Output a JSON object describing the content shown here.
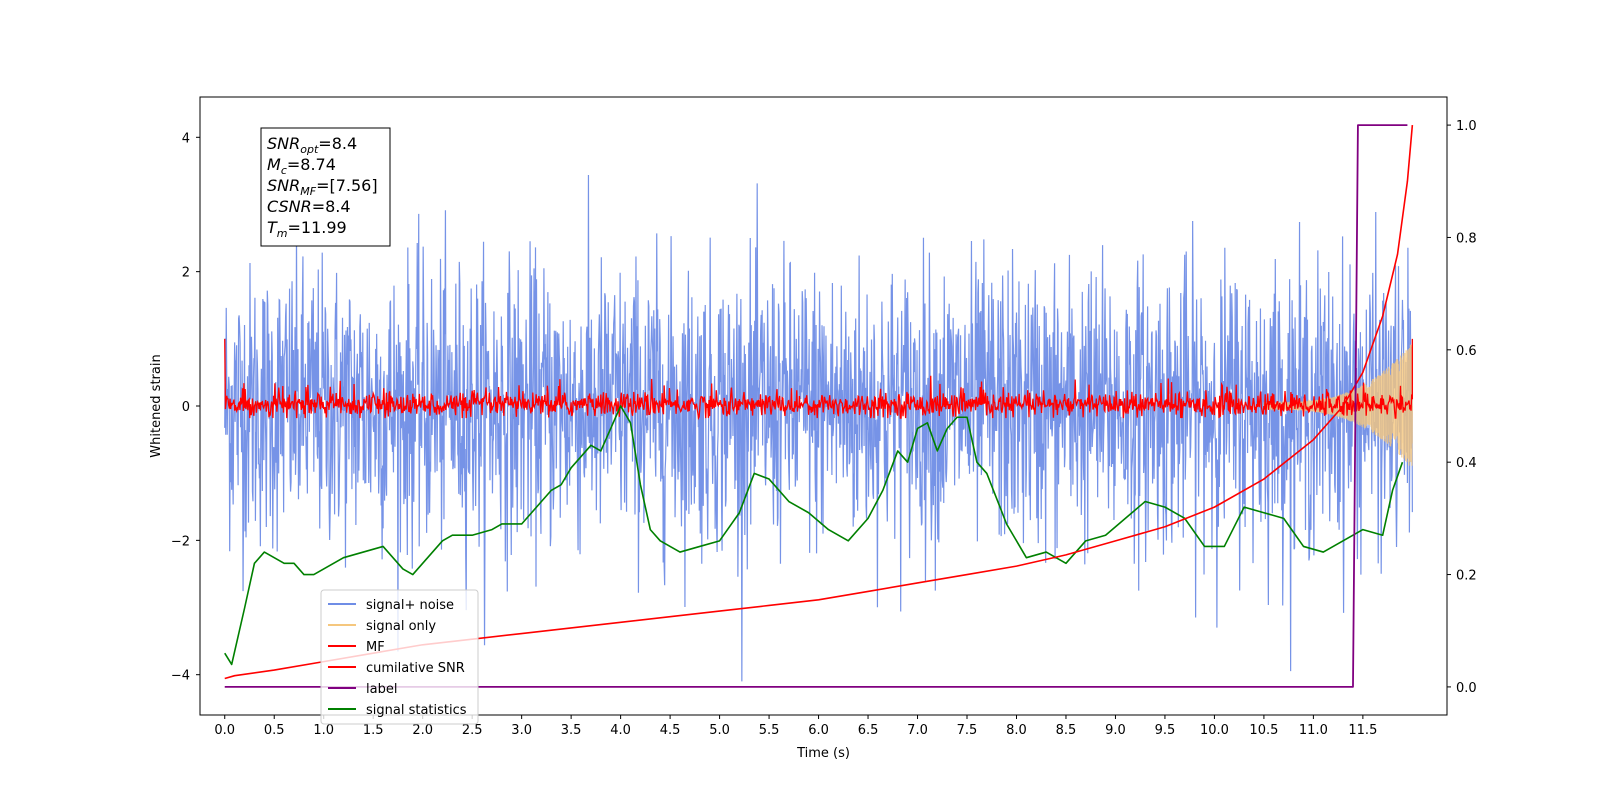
{
  "chart_data": {
    "type": "line",
    "title": "",
    "xlabel": "Time (s)",
    "ylabel_left": "Whitened strain",
    "ylabel_right": "",
    "xlim": [
      -0.25,
      12.35
    ],
    "ylim_left": [
      -4.6,
      4.6
    ],
    "ylim_right": [
      -0.05,
      1.05
    ],
    "xticks": [
      "0.0",
      "0.5",
      "1.0",
      "1.5",
      "2.0",
      "2.5",
      "3.0",
      "3.5",
      "4.0",
      "4.5",
      "5.0",
      "5.5",
      "6.0",
      "6.5",
      "7.0",
      "7.5",
      "8.0",
      "8.5",
      "9.0",
      "9.5",
      "10.0",
      "10.5",
      "11.0",
      "11.5"
    ],
    "xtick_values": [
      0,
      0.5,
      1,
      1.5,
      2,
      2.5,
      3,
      3.5,
      4,
      4.5,
      5,
      5.5,
      6,
      6.5,
      7,
      7.5,
      8,
      8.5,
      9,
      9.5,
      10,
      10.5,
      11,
      11.5
    ],
    "yticks_left": [
      "4",
      "2",
      "0",
      "−2",
      "−4"
    ],
    "ytick_values_left": [
      4,
      2,
      0,
      -2,
      -4
    ],
    "yticks_right": [
      "1.0",
      "0.8",
      "0.6",
      "0.4",
      "0.2",
      "0.0"
    ],
    "ytick_values_right": [
      1.0,
      0.8,
      0.6,
      0.4,
      0.2,
      0.0
    ],
    "grid": false,
    "legend_position": "lower-left",
    "annotation": {
      "lines": [
        {
          "sym": "SNR",
          "sub": "opt",
          "val": "=8.4"
        },
        {
          "sym": "M",
          "sub": "c",
          "val": "=8.74"
        },
        {
          "sym": "SNR",
          "sub": "MF",
          "val": "=[7.56]"
        },
        {
          "sym": "CSNR",
          "sub": "",
          "val": "=8.4"
        },
        {
          "sym": "T",
          "sub": "m",
          "val": "=11.99"
        }
      ]
    },
    "series": [
      {
        "name": "signal+ noise",
        "axis": "left",
        "color": "#6f8de6",
        "style": "noise",
        "x_range": [
          0,
          12.0
        ],
        "y_center": 0,
        "envelope_top": [
          2.3,
          3.0,
          3.3,
          3.9,
          4.1
        ],
        "envelope_bottom": [
          -2.6,
          -3.0,
          -3.3,
          -3.9,
          -4.1
        ]
      },
      {
        "name": "signal only",
        "axis": "left",
        "color": "#f5c77e",
        "style": "chirp",
        "x_range": [
          10.5,
          12.0
        ],
        "amplitude_end": 1.0
      },
      {
        "name": "MF",
        "axis": "left",
        "color": "#ff0000",
        "style": "band",
        "x_range": [
          0,
          12.0
        ],
        "y_center": 0,
        "band_top": 0.45,
        "band_bottom": -0.18,
        "start_value": 1.0,
        "end_value": 1.0
      },
      {
        "name": "cumilative SNR",
        "axis": "right",
        "color": "#ff0000",
        "x": [
          0.0,
          0.1,
          0.5,
          1.0,
          1.5,
          2.0,
          2.5,
          3.0,
          3.5,
          4.0,
          4.5,
          5.0,
          5.5,
          6.0,
          6.5,
          7.0,
          7.5,
          8.0,
          8.5,
          9.0,
          9.5,
          10.0,
          10.5,
          11.0,
          11.3,
          11.5,
          11.7,
          11.85,
          11.95,
          12.0
        ],
        "y": [
          0.015,
          0.02,
          0.03,
          0.045,
          0.06,
          0.075,
          0.085,
          0.095,
          0.105,
          0.115,
          0.125,
          0.135,
          0.145,
          0.155,
          0.17,
          0.185,
          0.2,
          0.215,
          0.235,
          0.26,
          0.285,
          0.32,
          0.37,
          0.44,
          0.5,
          0.56,
          0.66,
          0.77,
          0.9,
          1.0
        ]
      },
      {
        "name": "label",
        "axis": "right",
        "color": "#800080",
        "x": [
          0.0,
          11.4,
          11.45,
          11.95
        ],
        "y": [
          0.0,
          0.0,
          1.0,
          1.0
        ]
      },
      {
        "name": "signal statistics",
        "axis": "right",
        "color": "#008000",
        "x": [
          0.0,
          0.07,
          0.2,
          0.3,
          0.4,
          0.5,
          0.6,
          0.7,
          0.8,
          0.9,
          1.0,
          1.2,
          1.4,
          1.6,
          1.8,
          1.9,
          2.0,
          2.2,
          2.3,
          2.5,
          2.7,
          2.8,
          3.0,
          3.2,
          3.3,
          3.4,
          3.5,
          3.6,
          3.7,
          3.8,
          3.9,
          4.0,
          4.1,
          4.2,
          4.3,
          4.4,
          4.6,
          4.8,
          5.0,
          5.2,
          5.35,
          5.5,
          5.7,
          5.9,
          6.1,
          6.3,
          6.5,
          6.65,
          6.8,
          6.9,
          7.0,
          7.1,
          7.2,
          7.3,
          7.4,
          7.5,
          7.6,
          7.7,
          7.9,
          8.1,
          8.3,
          8.5,
          8.7,
          8.9,
          9.1,
          9.3,
          9.5,
          9.7,
          9.9,
          10.1,
          10.3,
          10.5,
          10.7,
          10.9,
          11.1,
          11.3,
          11.5,
          11.7,
          11.8,
          11.9
        ],
        "y": [
          0.06,
          0.04,
          0.14,
          0.22,
          0.24,
          0.23,
          0.22,
          0.22,
          0.2,
          0.2,
          0.21,
          0.23,
          0.24,
          0.25,
          0.21,
          0.2,
          0.22,
          0.26,
          0.27,
          0.27,
          0.28,
          0.29,
          0.29,
          0.33,
          0.35,
          0.36,
          0.39,
          0.41,
          0.43,
          0.42,
          0.46,
          0.5,
          0.47,
          0.36,
          0.28,
          0.26,
          0.24,
          0.25,
          0.26,
          0.31,
          0.38,
          0.37,
          0.33,
          0.31,
          0.28,
          0.26,
          0.3,
          0.35,
          0.42,
          0.4,
          0.46,
          0.47,
          0.42,
          0.46,
          0.48,
          0.48,
          0.4,
          0.38,
          0.29,
          0.23,
          0.24,
          0.22,
          0.26,
          0.27,
          0.3,
          0.33,
          0.32,
          0.3,
          0.25,
          0.25,
          0.32,
          0.31,
          0.3,
          0.25,
          0.24,
          0.26,
          0.28,
          0.27,
          0.35,
          0.4
        ]
      }
    ]
  }
}
